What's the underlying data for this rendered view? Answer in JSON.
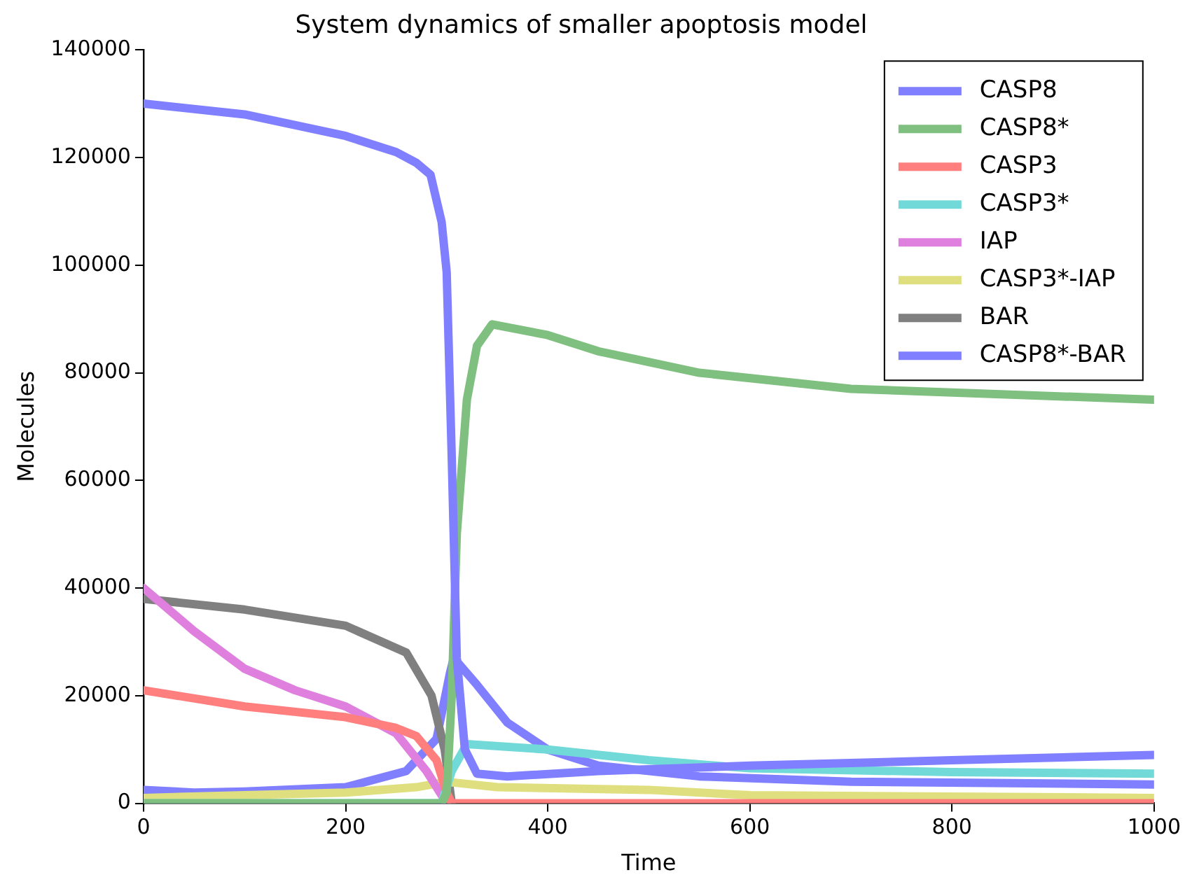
{
  "chart_data": {
    "type": "line",
    "title": "System dynamics of smaller apoptosis model",
    "xlabel": "Time",
    "ylabel": "Molecules",
    "xlim": [
      0,
      1000
    ],
    "xticks": [
      0,
      200,
      400,
      600,
      800,
      1000
    ],
    "ylim": [
      0,
      140000
    ],
    "yticks": [
      0,
      20000,
      40000,
      60000,
      80000,
      100000,
      120000,
      140000
    ],
    "grid": false,
    "legend": "top right",
    "marker": "none",
    "line_style": "solid",
    "series": [
      {
        "name": "CASP8",
        "color": "#7f7fff",
        "x": [
          0,
          100,
          200,
          250,
          270,
          284,
          295,
          300,
          305,
          310,
          318,
          330,
          360,
          450,
          600,
          800,
          1000
        ],
        "values": [
          130000,
          128000,
          124000,
          121000,
          119000,
          116800,
          108000,
          98700,
          64400,
          27000,
          10000,
          5500,
          5000,
          6000,
          7000,
          8000,
          9000
        ]
      },
      {
        "name": "CASP8*",
        "color": "#7fbf7f",
        "x": [
          0,
          295,
          300,
          305,
          310,
          320,
          330,
          345,
          400,
          450,
          550,
          700,
          1000
        ],
        "values": [
          0,
          0,
          2000,
          20000,
          50000,
          75000,
          85000,
          89000,
          87000,
          84000,
          80000,
          77000,
          75000
        ]
      },
      {
        "name": "CASP3",
        "color": "#ff7f7f",
        "x": [
          0,
          100,
          200,
          250,
          270,
          290,
          300,
          305,
          1000
        ],
        "values": [
          21000,
          18000,
          16000,
          14000,
          12500,
          8000,
          2000,
          0,
          0
        ]
      },
      {
        "name": "CASP3*",
        "color": "#72d9d9",
        "x": [
          0,
          295,
          305,
          320,
          400,
          500,
          600,
          800,
          1000
        ],
        "values": [
          0,
          0,
          6000,
          11000,
          10000,
          8000,
          6500,
          5800,
          5500
        ]
      },
      {
        "name": "IAP",
        "color": "#df80df",
        "x": [
          0,
          50,
          100,
          150,
          200,
          250,
          280,
          300
        ],
        "values": [
          40000,
          32000,
          25000,
          21000,
          18000,
          13000,
          6000,
          0
        ]
      },
      {
        "name": "CASP3*-IAP",
        "color": "#dfdf80",
        "x": [
          0,
          100,
          200,
          270,
          300,
          350,
          500,
          600,
          1000
        ],
        "values": [
          1000,
          1500,
          2000,
          3000,
          4000,
          3000,
          2500,
          1500,
          1000
        ]
      },
      {
        "name": "BAR",
        "color": "#808080",
        "x": [
          0,
          100,
          200,
          260,
          285,
          298,
          305
        ],
        "values": [
          38000,
          36000,
          33000,
          28000,
          20000,
          10000,
          0
        ]
      },
      {
        "name": "CASP8*-BAR",
        "color": "#7f7fff",
        "x": [
          0,
          50,
          100,
          200,
          260,
          290,
          303,
          307,
          330,
          360,
          400,
          450,
          550,
          700,
          1000
        ],
        "values": [
          2500,
          2000,
          2200,
          3000,
          6000,
          12000,
          24000,
          27000,
          22000,
          15000,
          10000,
          7000,
          5000,
          4000,
          3500
        ]
      }
    ]
  }
}
